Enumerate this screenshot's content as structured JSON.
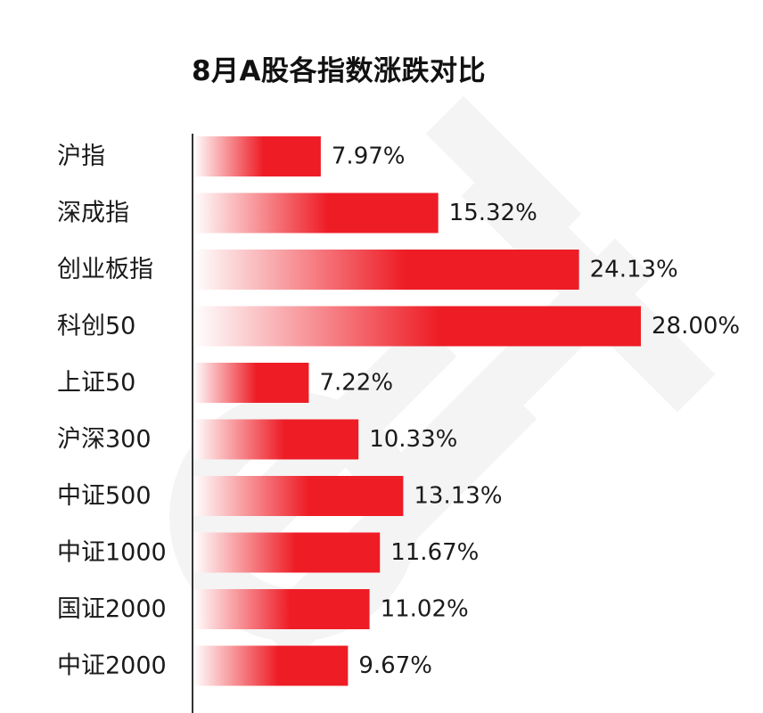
{
  "colors": {
    "bar_start": "#ffffff",
    "bar_end": "#ee1c25",
    "axis": "#333333",
    "watermark": "#f3f3f3"
  },
  "chart_data": {
    "type": "bar",
    "orientation": "horizontal",
    "title": "8月A股各指数涨跌对比",
    "xlabel": "",
    "ylabel": "",
    "unit": "%",
    "xlim": [
      0,
      28
    ],
    "grid": false,
    "categories": [
      "沪指",
      "深成指",
      "创业板指",
      "科创50",
      "上证50",
      "沪深300",
      "中证500",
      "中证1000",
      "国证2000",
      "中证2000"
    ],
    "values": [
      7.97,
      15.32,
      24.13,
      28.0,
      7.22,
      10.33,
      13.13,
      11.67,
      11.02,
      9.67
    ],
    "labels": [
      "7.97%",
      "15.32%",
      "24.13%",
      "28.00%",
      "7.22%",
      "10.33%",
      "13.13%",
      "11.67%",
      "11.02%",
      "9.67%"
    ],
    "series": [
      {
        "values": [
          7.97,
          15.32,
          24.13,
          28.0,
          7.22,
          10.33,
          13.13,
          11.67,
          11.02,
          9.67
        ]
      }
    ]
  }
}
